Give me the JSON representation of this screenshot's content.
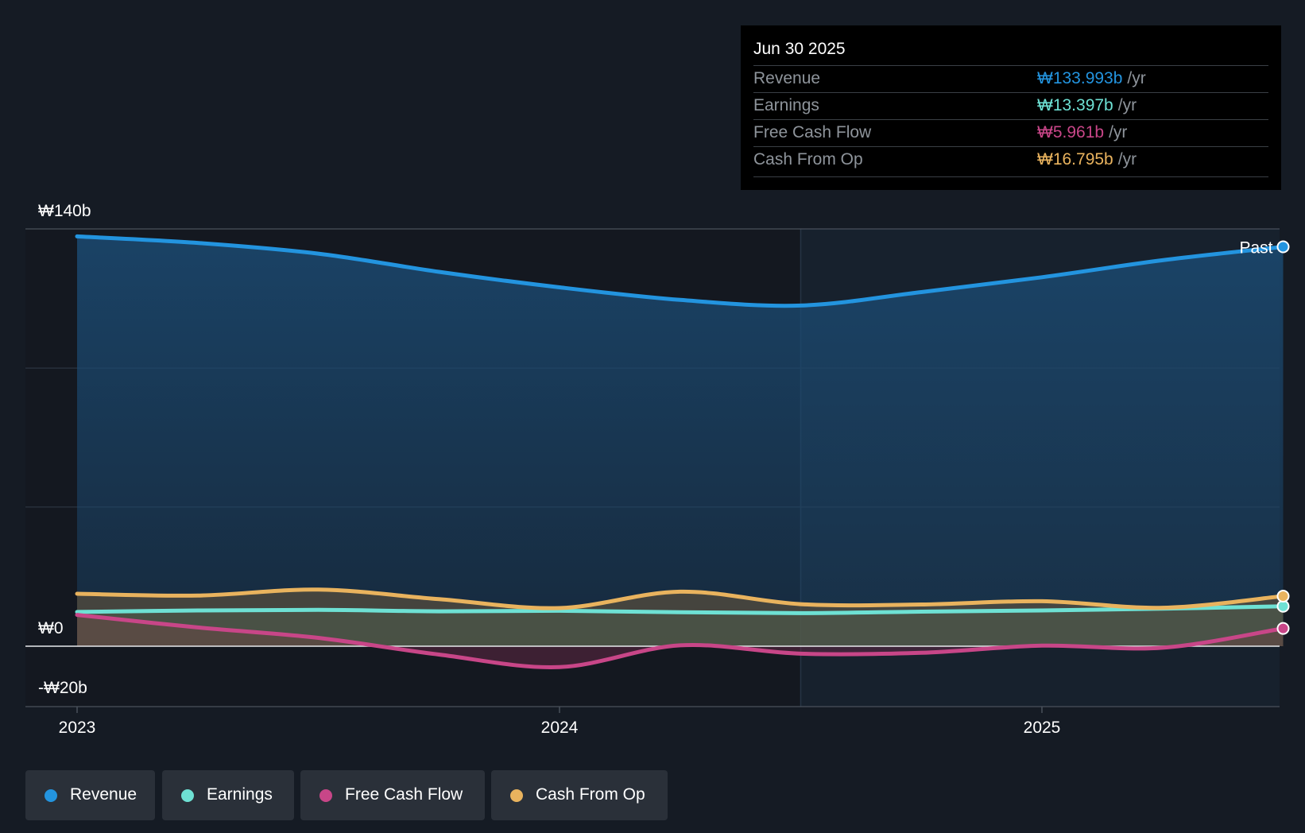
{
  "chart_data": {
    "type": "area",
    "title": "",
    "xlabel": "",
    "ylabel": "",
    "currency": "₩",
    "ylim": [
      -20,
      140
    ],
    "y_tick_labels": [
      {
        "value": 140,
        "label": "₩140b"
      },
      {
        "value": 0,
        "label": "₩0"
      },
      {
        "value": -20,
        "label": "-₩20b"
      }
    ],
    "x_tick_labels": [
      {
        "value": 2023.0,
        "label": "2023"
      },
      {
        "value": 2024.0,
        "label": "2024"
      },
      {
        "value": 2025.0,
        "label": "2025"
      }
    ],
    "x_range": [
      2022.95,
      2025.5
    ],
    "past_divider_x": 2024.5,
    "past_label": "Past",
    "series": [
      {
        "name": "Revenue",
        "color": "#2394df",
        "points": [
          [
            2023.0,
            137.5
          ],
          [
            2023.25,
            135.3
          ],
          [
            2023.5,
            131.7
          ],
          [
            2023.75,
            125.6
          ],
          [
            2024.0,
            120.4
          ],
          [
            2024.25,
            116.2
          ],
          [
            2024.5,
            114.3
          ],
          [
            2024.75,
            118.8
          ],
          [
            2025.0,
            123.8
          ],
          [
            2025.25,
            129.5
          ],
          [
            2025.5,
            134.0
          ]
        ]
      },
      {
        "name": "Earnings",
        "color": "#6ee1d4",
        "points": [
          [
            2023.0,
            11.5
          ],
          [
            2023.25,
            12.0
          ],
          [
            2023.5,
            12.2
          ],
          [
            2023.75,
            11.7
          ],
          [
            2024.0,
            11.9
          ],
          [
            2024.25,
            11.4
          ],
          [
            2024.5,
            11.1
          ],
          [
            2024.75,
            11.6
          ],
          [
            2025.0,
            12.0
          ],
          [
            2025.25,
            12.6
          ],
          [
            2025.5,
            13.4
          ]
        ]
      },
      {
        "name": "Free Cash Flow",
        "color": "#c84688",
        "points": [
          [
            2023.0,
            10.5
          ],
          [
            2023.25,
            6.3
          ],
          [
            2023.5,
            2.8
          ],
          [
            2023.75,
            -2.8
          ],
          [
            2024.0,
            -7.0
          ],
          [
            2024.25,
            0.3
          ],
          [
            2024.5,
            -2.5
          ],
          [
            2024.75,
            -2.2
          ],
          [
            2025.0,
            0.2
          ],
          [
            2025.25,
            -0.5
          ],
          [
            2025.5,
            5.96
          ]
        ]
      },
      {
        "name": "Cash From Op",
        "color": "#e9b35e",
        "points": [
          [
            2023.0,
            17.6
          ],
          [
            2023.25,
            17.0
          ],
          [
            2023.5,
            19.0
          ],
          [
            2023.75,
            15.8
          ],
          [
            2024.0,
            12.8
          ],
          [
            2024.25,
            18.3
          ],
          [
            2024.5,
            14.1
          ],
          [
            2024.75,
            14.0
          ],
          [
            2025.0,
            15.1
          ],
          [
            2025.25,
            12.9
          ],
          [
            2025.5,
            16.8
          ]
        ]
      }
    ]
  },
  "tooltip": {
    "date": "Jun 30 2025",
    "unit": "/yr",
    "rows": [
      {
        "label": "Revenue",
        "value": "₩133.993b",
        "color": "#2394df"
      },
      {
        "label": "Earnings",
        "value": "₩13.397b",
        "color": "#6ee1d4"
      },
      {
        "label": "Free Cash Flow",
        "value": "₩5.961b",
        "color": "#c84688"
      },
      {
        "label": "Cash From Op",
        "value": "₩16.795b",
        "color": "#e9b35e"
      }
    ]
  },
  "legend": [
    {
      "label": "Revenue",
      "color": "#2394df"
    },
    {
      "label": "Earnings",
      "color": "#6ee1d4"
    },
    {
      "label": "Free Cash Flow",
      "color": "#c84688"
    },
    {
      "label": "Cash From Op",
      "color": "#e9b35e"
    }
  ]
}
